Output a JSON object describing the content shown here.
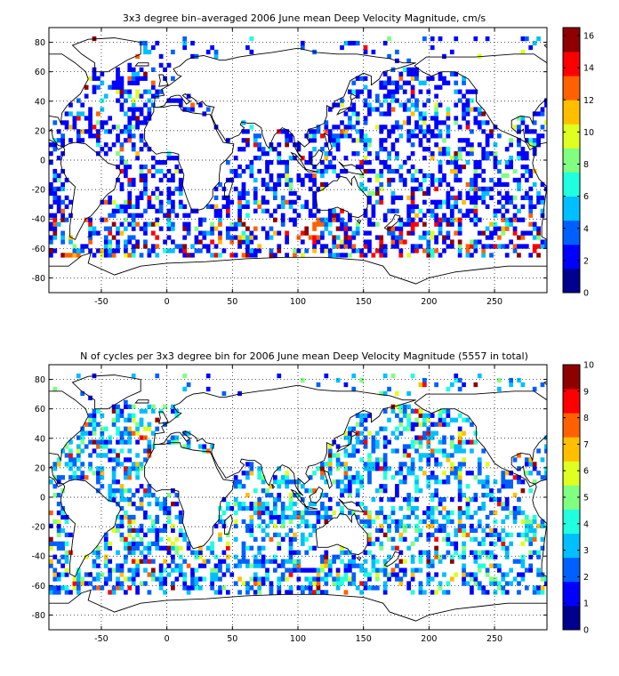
{
  "palette": [
    "#00008f",
    "#0000ff",
    "#0060ff",
    "#00bfff",
    "#20ffdf",
    "#80ff80",
    "#dfff20",
    "#ffbf00",
    "#ff6000",
    "#ff0000",
    "#8f0000"
  ],
  "chart_data": [
    {
      "type": "heatmap",
      "title": "3x3 degree bin–averaged 2006 June mean Deep Velocity Magnitude, cm/s",
      "xlabel": "",
      "ylabel": "",
      "xlim": [
        -90,
        290
      ],
      "ylim": [
        -90,
        90
      ],
      "x_ticks": [
        -50,
        0,
        50,
        100,
        150,
        200,
        250
      ],
      "y_ticks": [
        80,
        60,
        40,
        20,
        0,
        -20,
        -40,
        -60,
        -80
      ],
      "colorbar": {
        "range": [
          0,
          16.5
        ],
        "ticks": [
          0,
          2,
          4,
          6,
          8,
          10,
          12,
          14,
          16
        ]
      },
      "grid": true,
      "bin_size_deg": 3
    },
    {
      "type": "heatmap",
      "title": "N of cycles per 3x3 degree bin for 2006 June mean Deep Velocity Magnitude (5557 in total)",
      "xlabel": "",
      "ylabel": "",
      "xlim": [
        -90,
        290
      ],
      "ylim": [
        -90,
        90
      ],
      "x_ticks": [
        -50,
        0,
        50,
        100,
        150,
        200,
        250
      ],
      "y_ticks": [
        80,
        60,
        40,
        20,
        0,
        -20,
        -40,
        -60,
        -80
      ],
      "colorbar": {
        "range": [
          0,
          10
        ],
        "ticks": [
          0,
          1,
          2,
          3,
          4,
          5,
          6,
          7,
          8,
          9,
          10
        ]
      },
      "grid": true,
      "bin_size_deg": 3
    }
  ]
}
